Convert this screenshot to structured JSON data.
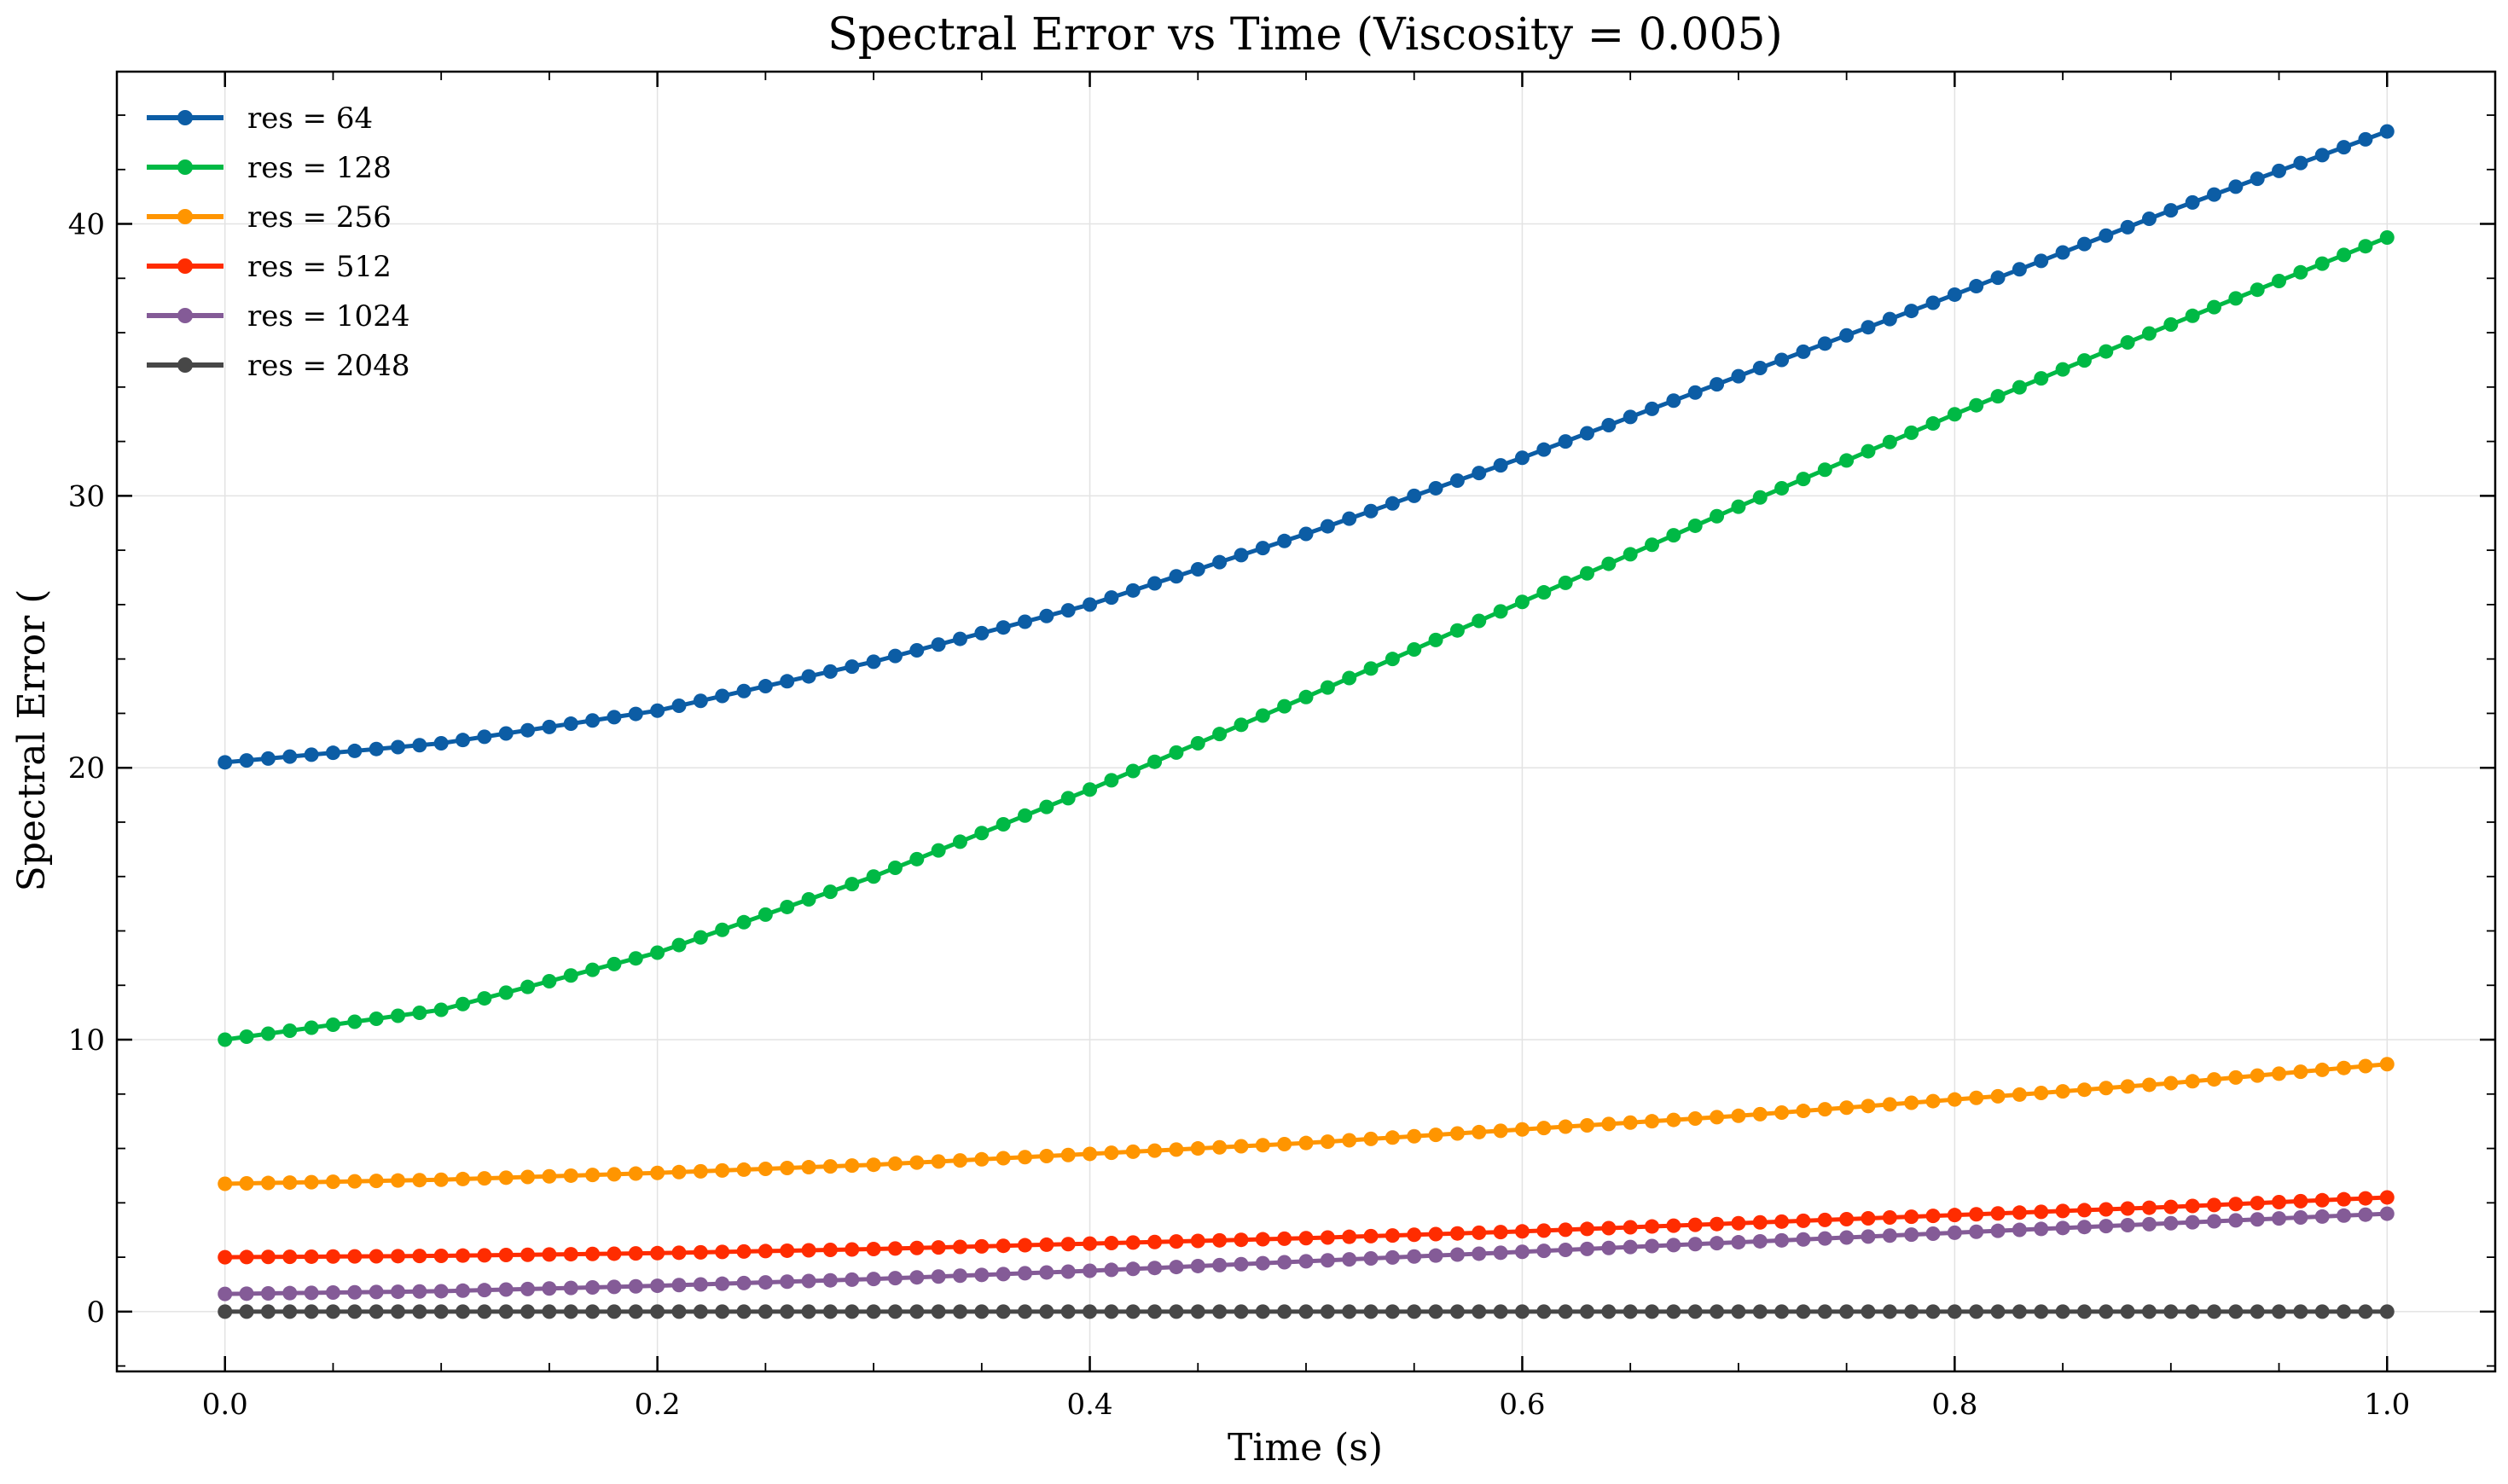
{
  "chart_data": {
    "type": "line",
    "title": "Spectral Error vs Time (Viscosity = 0.005)",
    "xlabel": "Time (s)",
    "ylabel": "Spectral Error (",
    "xlim": [
      -0.05,
      1.05
    ],
    "ylim": [
      -2.2,
      45.6
    ],
    "xticks": [
      0.0,
      0.2,
      0.4,
      0.6,
      0.8,
      1.0
    ],
    "xtick_labels": [
      "0.0",
      "0.2",
      "0.4",
      "0.6",
      "0.8",
      "1.0"
    ],
    "yticks": [
      0,
      10,
      20,
      30,
      40
    ],
    "ytick_labels": [
      "0",
      "10",
      "20",
      "30",
      "40"
    ],
    "grid": true,
    "legend_position": "top-left",
    "marker": "circle",
    "points_per_series": 101,
    "x_range": [
      0.0,
      1.0
    ],
    "series": [
      {
        "name": "res = 64",
        "color": "#0C5DA5",
        "x": [
          0.0,
          0.1,
          0.2,
          0.3,
          0.4,
          0.5,
          0.6,
          0.7,
          0.8,
          0.9,
          1.0
        ],
        "y": [
          20.2,
          20.9,
          22.1,
          23.9,
          26.0,
          28.6,
          31.4,
          34.4,
          37.4,
          40.5,
          43.4
        ]
      },
      {
        "name": "res = 128",
        "color": "#00B945",
        "x": [
          0.0,
          0.1,
          0.2,
          0.3,
          0.4,
          0.5,
          0.6,
          0.7,
          0.8,
          0.9,
          1.0
        ],
        "y": [
          10.0,
          11.1,
          13.2,
          16.0,
          19.2,
          22.6,
          26.1,
          29.6,
          33.0,
          36.3,
          39.5
        ]
      },
      {
        "name": "res = 256",
        "color": "#FF9500",
        "x": [
          0.0,
          0.1,
          0.2,
          0.3,
          0.4,
          0.5,
          0.6,
          0.7,
          0.8,
          0.9,
          1.0
        ],
        "y": [
          4.7,
          4.85,
          5.1,
          5.4,
          5.8,
          6.2,
          6.7,
          7.2,
          7.8,
          8.4,
          9.1
        ]
      },
      {
        "name": "res = 512",
        "color": "#FF2C00",
        "x": [
          0.0,
          0.1,
          0.2,
          0.3,
          0.4,
          0.5,
          0.6,
          0.7,
          0.8,
          0.9,
          1.0
        ],
        "y": [
          2.0,
          2.05,
          2.15,
          2.3,
          2.5,
          2.7,
          2.95,
          3.25,
          3.55,
          3.85,
          4.2
        ]
      },
      {
        "name": "res = 1024",
        "color": "#845B97",
        "x": [
          0.0,
          0.1,
          0.2,
          0.3,
          0.4,
          0.5,
          0.6,
          0.7,
          0.8,
          0.9,
          1.0
        ],
        "y": [
          0.65,
          0.75,
          0.95,
          1.2,
          1.5,
          1.85,
          2.2,
          2.55,
          2.9,
          3.25,
          3.6
        ]
      },
      {
        "name": "res = 2048",
        "color": "#474747",
        "x": [
          0.0,
          0.1,
          0.2,
          0.3,
          0.4,
          0.5,
          0.6,
          0.7,
          0.8,
          0.9,
          1.0
        ],
        "y": [
          0.0,
          0.0,
          0.0,
          0.0,
          0.0,
          0.0,
          0.0,
          0.0,
          0.0,
          0.0,
          0.0
        ]
      }
    ]
  }
}
